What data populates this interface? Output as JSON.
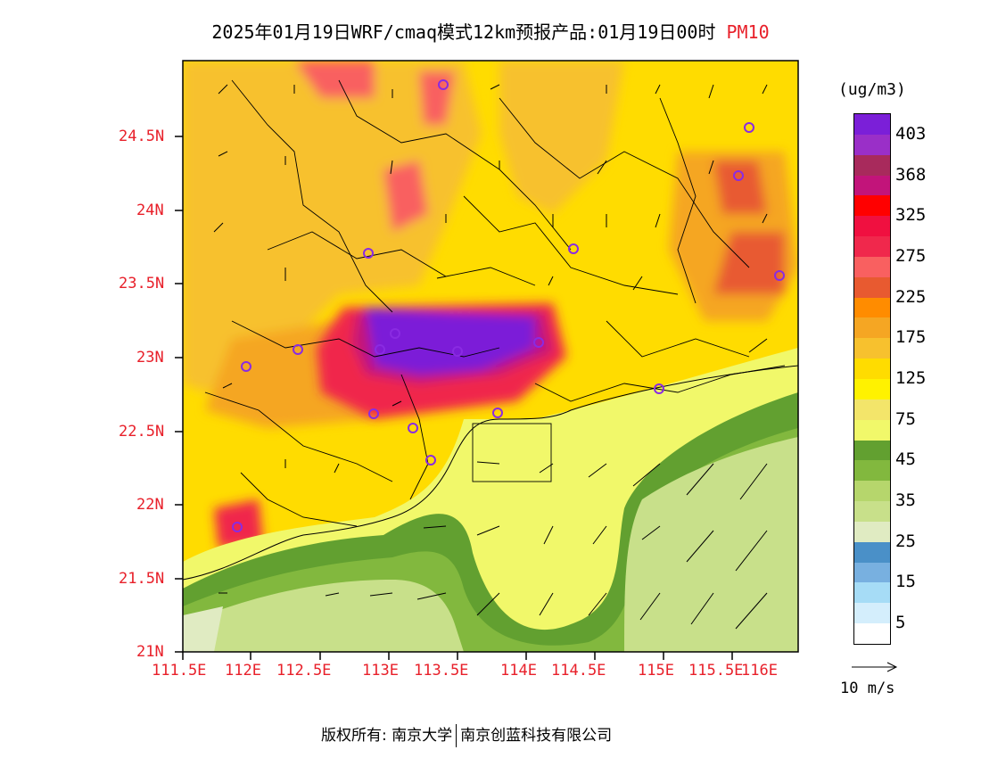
{
  "title": {
    "text": "2025年01月19日WRF/cmaq模式12km预报产品:01月19日00时",
    "pollutant": "PM10"
  },
  "map": {
    "lat_labels": [
      "24.5N",
      "24N",
      "23.5N",
      "23N",
      "22.5N",
      "22N",
      "21.5N",
      "21N"
    ],
    "lon_labels": [
      "111.5E",
      "112E",
      "112.5E",
      "113E",
      "113.5E",
      "114E",
      "114.5E",
      "115E",
      "115.5E",
      "116E"
    ]
  },
  "colorbar": {
    "unit": "(ug/m3)",
    "labels": [
      "403",
      "368",
      "325",
      "275",
      "225",
      "175",
      "125",
      "75",
      "45",
      "35",
      "25",
      "15",
      "5"
    ],
    "colors": [
      "#7b1fd8",
      "#9a2fc8",
      "#a82a5c",
      "#c2147a",
      "#ff0000",
      "#f01040",
      "#f0284c",
      "#f96060",
      "#e85a30",
      "#ff8c00",
      "#f5a623",
      "#f7c12e",
      "#ffdc00",
      "#fff200",
      "#f3e56a",
      "#f1f86a",
      "#62a030",
      "#82b83e",
      "#b6d66c",
      "#c8e08a",
      "#e0ebc2",
      "#4a90c8",
      "#78b0e0",
      "#a6dcf6",
      "#d4eefc",
      "#ffffff"
    ]
  },
  "wind_reference": "10 m/s",
  "footer": {
    "rights": "版权所有: 南京大学",
    "company": "南京创蓝科技有限公司"
  }
}
